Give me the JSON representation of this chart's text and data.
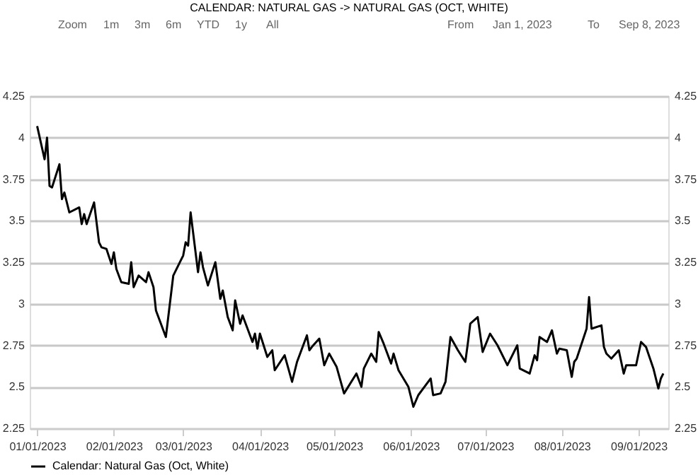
{
  "chart_data": {
    "type": "line",
    "title": "CALENDAR: NATURAL GAS -> NATURAL GAS (OCT, WHITE)",
    "annotations": [
      "Zoom",
      "1m",
      "3m",
      "6m",
      "YTD",
      "1y",
      "All",
      "From",
      "Jan 1, 2023",
      "To",
      "Sep 8, 2023"
    ],
    "x": [
      "2023-01-01",
      "2023-01-04",
      "2023-01-05",
      "2023-01-06",
      "2023-01-07",
      "2023-01-10",
      "2023-01-11",
      "2023-01-12",
      "2023-01-14",
      "2023-01-18",
      "2023-01-19",
      "2023-01-20",
      "2023-01-21",
      "2023-01-24",
      "2023-01-26",
      "2023-01-27",
      "2023-01-29",
      "2023-01-31",
      "2023-02-01",
      "2023-02-02",
      "2023-02-04",
      "2023-02-07",
      "2023-02-08",
      "2023-02-09",
      "2023-02-11",
      "2023-02-14",
      "2023-02-15",
      "2023-02-17",
      "2023-02-18",
      "2023-02-22",
      "2023-02-25",
      "2023-03-01",
      "2023-03-02",
      "2023-03-03",
      "2023-03-04",
      "2023-03-07",
      "2023-03-08",
      "2023-03-09",
      "2023-03-11",
      "2023-03-14",
      "2023-03-16",
      "2023-03-17",
      "2023-03-19",
      "2023-03-21",
      "2023-03-22",
      "2023-03-24",
      "2023-03-25",
      "2023-03-29",
      "2023-03-30",
      "2023-03-31",
      "2023-04-01",
      "2023-04-04",
      "2023-04-06",
      "2023-04-07",
      "2023-04-11",
      "2023-04-14",
      "2023-04-16",
      "2023-04-20",
      "2023-04-21",
      "2023-04-22",
      "2023-04-25",
      "2023-04-27",
      "2023-04-29",
      "2023-05-02",
      "2023-05-05",
      "2023-05-10",
      "2023-05-12",
      "2023-05-13",
      "2023-05-16",
      "2023-05-18",
      "2023-05-19",
      "2023-05-21",
      "2023-05-24",
      "2023-05-25",
      "2023-05-27",
      "2023-05-31",
      "2023-06-02",
      "2023-06-04",
      "2023-06-08",
      "2023-06-09",
      "2023-06-10",
      "2023-06-13",
      "2023-06-15",
      "2023-06-17",
      "2023-06-20",
      "2023-06-23",
      "2023-06-24",
      "2023-06-25",
      "2023-06-28",
      "2023-06-30",
      "2023-07-03",
      "2023-07-06",
      "2023-07-10",
      "2023-07-14",
      "2023-07-15",
      "2023-07-19",
      "2023-07-21",
      "2023-07-22",
      "2023-07-23",
      "2023-07-26",
      "2023-07-28",
      "2023-07-30",
      "2023-07-31",
      "2023-08-03",
      "2023-08-05",
      "2023-08-06",
      "2023-08-07",
      "2023-08-11",
      "2023-08-12",
      "2023-08-13",
      "2023-08-17",
      "2023-08-18",
      "2023-08-19",
      "2023-08-21",
      "2023-08-24",
      "2023-08-26",
      "2023-08-27",
      "2023-08-31",
      "2023-09-02",
      "2023-09-04",
      "2023-09-07",
      "2023-09-09",
      "2023-09-10",
      "2023-09-11"
    ],
    "series": [
      {
        "name": "Calendar: Natural Gas (Oct, White)",
        "color": "#000000",
        "values": [
          4.07,
          3.87,
          4.0,
          3.71,
          3.7,
          3.84,
          3.63,
          3.67,
          3.55,
          3.58,
          3.48,
          3.54,
          3.48,
          3.61,
          3.37,
          3.34,
          3.33,
          3.24,
          3.31,
          3.21,
          3.13,
          3.12,
          3.25,
          3.1,
          3.17,
          3.13,
          3.19,
          3.1,
          2.96,
          2.8,
          3.17,
          3.29,
          3.37,
          3.35,
          3.55,
          3.19,
          3.31,
          3.22,
          3.11,
          3.25,
          3.03,
          3.08,
          2.92,
          2.84,
          3.02,
          2.88,
          2.93,
          2.77,
          2.82,
          2.73,
          2.82,
          2.68,
          2.72,
          2.6,
          2.69,
          2.53,
          2.65,
          2.81,
          2.72,
          2.74,
          2.79,
          2.63,
          2.7,
          2.62,
          2.46,
          2.58,
          2.5,
          2.61,
          2.7,
          2.65,
          2.83,
          2.76,
          2.64,
          2.7,
          2.6,
          2.5,
          2.38,
          2.45,
          2.53,
          2.55,
          2.45,
          2.46,
          2.53,
          2.8,
          2.72,
          2.65,
          2.76,
          2.88,
          2.92,
          2.71,
          2.82,
          2.75,
          2.63,
          2.75,
          2.61,
          2.58,
          2.69,
          2.66,
          2.8,
          2.77,
          2.84,
          2.7,
          2.73,
          2.72,
          2.56,
          2.65,
          2.67,
          2.85,
          3.04,
          2.85,
          2.87,
          2.74,
          2.7,
          2.67,
          2.72,
          2.58,
          2.63,
          2.63,
          2.77,
          2.74,
          2.61,
          2.49,
          2.55,
          2.58
        ]
      }
    ],
    "xlim": [
      "2022-12-29",
      "2023-09-13"
    ],
    "xticks": [
      {
        "value": "2023-01-01",
        "label": "01/01/2023"
      },
      {
        "value": "2023-02-01",
        "label": "02/01/2023"
      },
      {
        "value": "2023-03-01",
        "label": "03/01/2023"
      },
      {
        "value": "2023-04-01",
        "label": "04/01/2023"
      },
      {
        "value": "2023-05-01",
        "label": "05/01/2023"
      },
      {
        "value": "2023-06-01",
        "label": "06/01/2023"
      },
      {
        "value": "2023-07-01",
        "label": "07/01/2023"
      },
      {
        "value": "2023-08-01",
        "label": "08/01/2023"
      },
      {
        "value": "2023-09-01",
        "label": "09/01/2023"
      }
    ],
    "ylim": [
      2.25,
      4.25
    ],
    "yticks": [
      2.25,
      2.5,
      2.75,
      3,
      3.25,
      3.5,
      3.75,
      4,
      4.25
    ],
    "y2lim": [
      2.25,
      4.25
    ],
    "y2ticks": [
      2.25,
      2.5,
      2.75,
      3,
      3.25,
      3.5,
      3.75,
      4,
      4.25
    ],
    "grid": "y",
    "legend": "bottom",
    "marker": "none",
    "line_style": "solid"
  }
}
